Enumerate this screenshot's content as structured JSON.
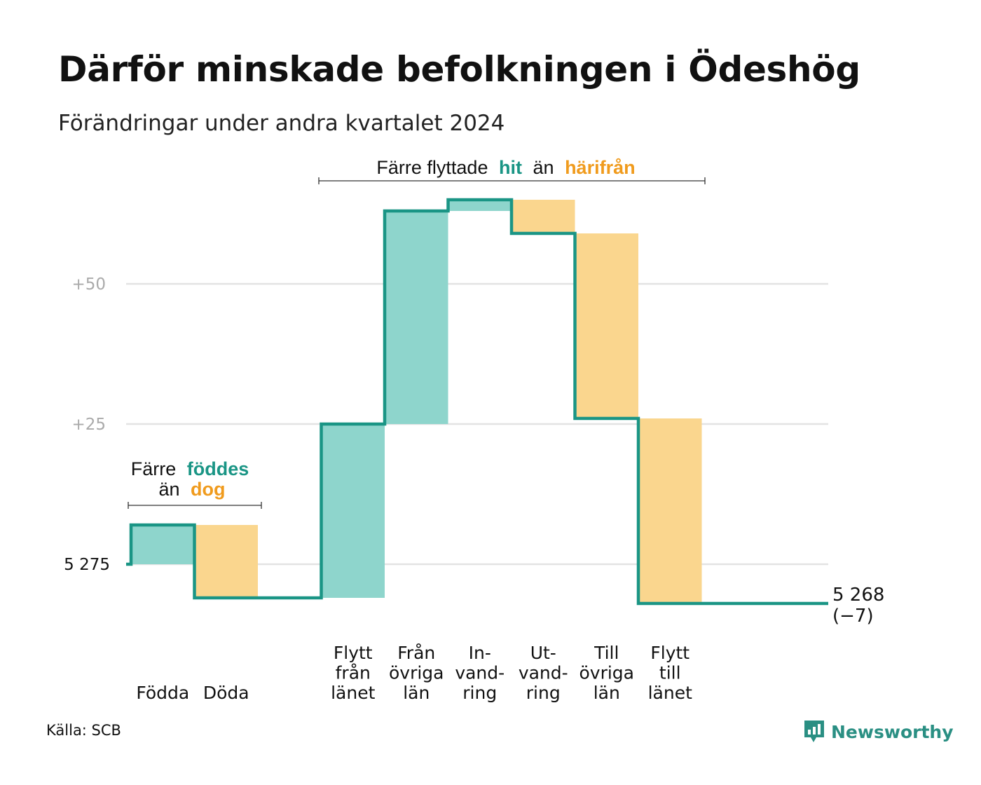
{
  "title": "Därför minskade befolkningen i Ödeshög",
  "subtitle": "Förändringar under andra kvartalet 2024",
  "source": "Källa: SCB",
  "brand": {
    "name": "Newsworthy",
    "icon": "newsworthy-logo-icon",
    "color": "#2a8f83"
  },
  "colors": {
    "increase": "#8ed5cc",
    "decrease": "#fad68e",
    "line": "#1a9585",
    "increase_text": "#1a9585",
    "decrease_text": "#f09b1d",
    "grid": "#e3e3e3"
  },
  "annotations": {
    "births": {
      "line1_prefix": "Färre",
      "line1_highlight": "föddes",
      "line2_prefix": "än",
      "line2_highlight": "dog"
    },
    "migration": {
      "prefix": "Färre flyttade",
      "highlight_in": "hit",
      "middle": "än",
      "highlight_out": "härifrån"
    }
  },
  "chart_data": {
    "type": "waterfall",
    "start_value": 5275,
    "start_label": "5  275",
    "end_value": 5268,
    "end_label_line1": "5 268",
    "end_label_line2": "(−7)",
    "yticks": [
      {
        "value": 5275,
        "label": "5  275"
      },
      {
        "value": 5300,
        "label": "+25"
      },
      {
        "value": 5325,
        "label": "+50"
      }
    ],
    "steps": [
      {
        "label_lines": [
          "",
          "",
          "Födda"
        ],
        "change": 7,
        "direction": "increase"
      },
      {
        "label_lines": [
          "",
          "",
          "Döda"
        ],
        "change": -13,
        "direction": "decrease"
      },
      {
        "label_lines": [
          "",
          "",
          ""
        ],
        "change": 0,
        "direction": "gap"
      },
      {
        "label_lines": [
          "Flytt",
          "från",
          "länet"
        ],
        "change": 31,
        "direction": "increase"
      },
      {
        "label_lines": [
          "Från",
          "övriga",
          "län"
        ],
        "change": 38,
        "direction": "increase"
      },
      {
        "label_lines": [
          "In-",
          "vand-",
          "ring"
        ],
        "change": 2,
        "direction": "increase"
      },
      {
        "label_lines": [
          "Ut-",
          "vand-",
          "ring"
        ],
        "change": -6,
        "direction": "decrease"
      },
      {
        "label_lines": [
          "Till",
          "övriga",
          "län"
        ],
        "change": -33,
        "direction": "decrease"
      },
      {
        "label_lines": [
          "Flytt",
          "till",
          "länet"
        ],
        "change": -33,
        "direction": "decrease"
      }
    ]
  }
}
